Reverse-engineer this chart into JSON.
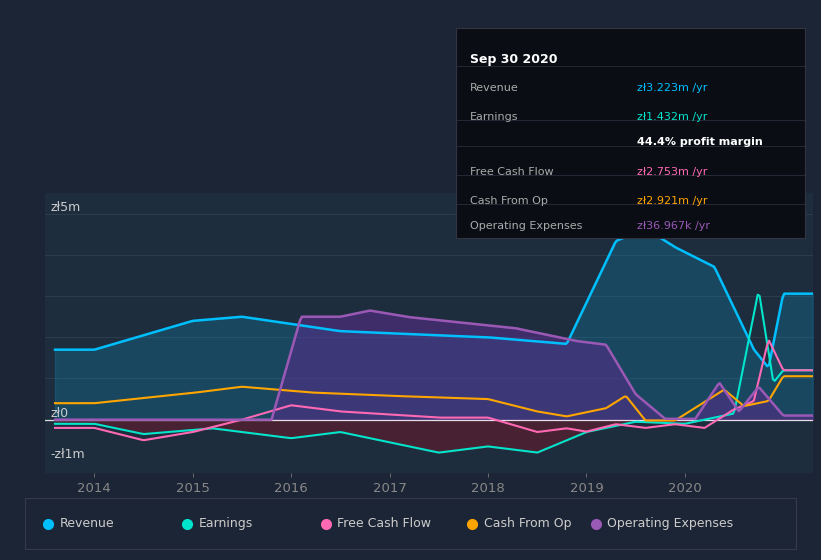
{
  "bg_color": "#1c2535",
  "plot_bg_color": "#1e2d3d",
  "ylabel_top": "zł5m",
  "ylabel_zero": "zł0",
  "ylabel_neg": "-zł1m",
  "x_ticks": [
    2014,
    2015,
    2016,
    2017,
    2018,
    2019,
    2020
  ],
  "legend": [
    {
      "label": "Revenue",
      "color": "#00bfff"
    },
    {
      "label": "Earnings",
      "color": "#00e5cc"
    },
    {
      "label": "Free Cash Flow",
      "color": "#ff69b4"
    },
    {
      "label": "Cash From Op",
      "color": "#ffa500"
    },
    {
      "label": "Operating Expenses",
      "color": "#9b59b6"
    }
  ],
  "tooltip_title": "Sep 30 2020",
  "tooltip_rows": [
    {
      "label": "Revenue",
      "value": "zł3.223m /yr",
      "value_color": "#00bfff",
      "separator_after": false
    },
    {
      "label": "Earnings",
      "value": "zł1.432m /yr",
      "value_color": "#00e5cc",
      "separator_after": false
    },
    {
      "label": "",
      "value": "44.4% profit margin",
      "value_color": "#ffffff",
      "separator_after": true
    },
    {
      "label": "Free Cash Flow",
      "value": "zł2.753m /yr",
      "value_color": "#ff69b4",
      "separator_after": true
    },
    {
      "label": "Cash From Op",
      "value": "zł2.921m /yr",
      "value_color": "#ffa500",
      "separator_after": true
    },
    {
      "label": "Operating Expenses",
      "value": "zł36.967k /yr",
      "value_color": "#9b59b6",
      "separator_after": false
    }
  ],
  "revenue_color": "#00bfff",
  "earnings_color": "#00e5cc",
  "fcf_color": "#ff69b4",
  "cashop_color": "#ffa500",
  "opex_color": "#9b59b6",
  "revenue_fill": "#00bfff",
  "opex_fill": "#5b2d8e",
  "earnings_neg_fill": "#6b1a2a",
  "zero_line_color": "#ffffff",
  "grid_color": "#2e3f50",
  "tick_color": "#888888",
  "label_color": "#cccccc",
  "tooltip_bg": "#0a0e14",
  "tooltip_border": "#333344",
  "legend_dot_size": 7,
  "xmin": 2013.5,
  "xmax": 2021.3,
  "ymin": -1300000.0,
  "ymax": 5500000.0
}
